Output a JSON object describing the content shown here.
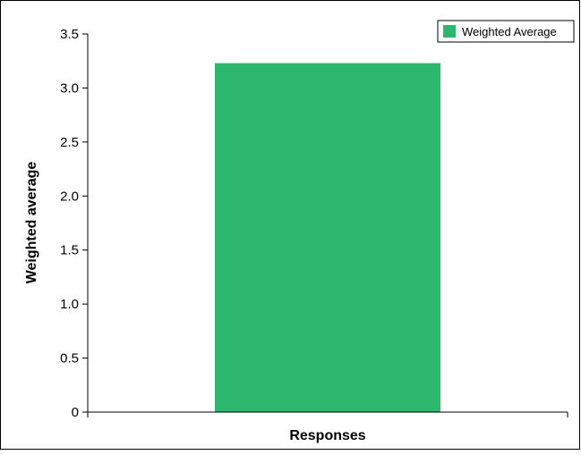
{
  "chart_data": {
    "type": "bar",
    "categories": [
      ""
    ],
    "series": [
      {
        "name": "Weighted Average",
        "values": [
          3.23
        ],
        "color": "#2db66e"
      }
    ],
    "xlabel": "Responses",
    "ylabel": "Weighted average",
    "ylim": [
      0,
      3.5
    ],
    "yticks": [
      "0",
      "0.5",
      "1.0",
      "1.5",
      "2.0",
      "2.5",
      "3.0",
      "3.5"
    ],
    "grid": false,
    "legend_position": "top-right"
  }
}
